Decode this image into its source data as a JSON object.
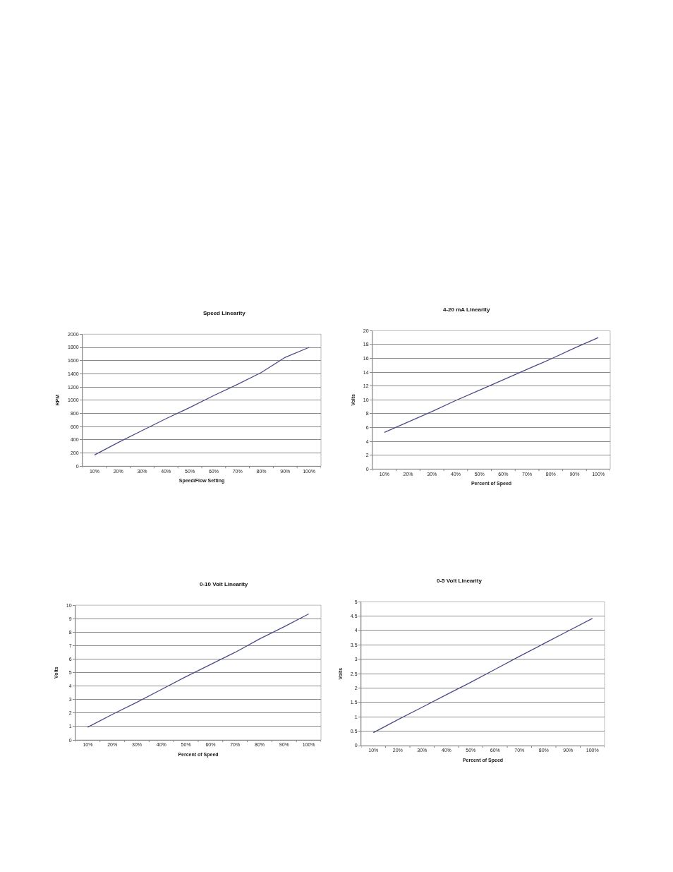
{
  "chart_data": [
    {
      "type": "line",
      "title": "Speed Linearity",
      "xlabel": "Speed/Flow Setting",
      "ylabel": "RPM",
      "categories": [
        "10%",
        "20%",
        "30%",
        "40%",
        "50%",
        "60%",
        "70%",
        "80%",
        "90%",
        "100%"
      ],
      "values": [
        170,
        360,
        540,
        720,
        890,
        1070,
        1240,
        1420,
        1650,
        1800
      ],
      "color": "#4b4b8c",
      "ylim": [
        0,
        2000
      ],
      "yticks": [
        0,
        200,
        400,
        600,
        800,
        1000,
        1200,
        1400,
        1600,
        1800,
        2000
      ],
      "grid": "y"
    },
    {
      "type": "line",
      "title": "4-20 mA Linearity",
      "xlabel": "Percent of Speed",
      "ylabel": "Volts",
      "categories": [
        "10%",
        "20%",
        "30%",
        "40%",
        "50%",
        "60%",
        "70%",
        "80%",
        "90%",
        "100%"
      ],
      "values": [
        5.3,
        6.8,
        8.3,
        9.9,
        11.4,
        12.9,
        14.4,
        15.9,
        17.5,
        19.0
      ],
      "color": "#4b4b8c",
      "ylim": [
        0,
        20
      ],
      "yticks": [
        0,
        2,
        4,
        6,
        8,
        10,
        12,
        14,
        16,
        18,
        20
      ],
      "grid": "y"
    },
    {
      "type": "line",
      "title": "0-10 Volt Linearity",
      "xlabel": "Percent of Speed",
      "ylabel": "Volts",
      "categories": [
        "10%",
        "20%",
        "30%",
        "40%",
        "50%",
        "60%",
        "70%",
        "80%",
        "90%",
        "100%"
      ],
      "values": [
        0.95,
        1.9,
        2.8,
        3.75,
        4.7,
        5.6,
        6.5,
        7.5,
        8.4,
        9.35
      ],
      "color": "#4b4b8c",
      "ylim": [
        0,
        10
      ],
      "yticks": [
        0,
        1,
        2,
        3,
        4,
        5,
        6,
        7,
        8,
        9,
        10
      ],
      "grid": "y"
    },
    {
      "type": "line",
      "title": "0-5 Volt Linearity",
      "xlabel": "Percent of Speed",
      "ylabel": "Volts",
      "categories": [
        "10%",
        "20%",
        "30%",
        "40%",
        "50%",
        "60%",
        "70%",
        "80%",
        "90%",
        "100%"
      ],
      "values": [
        0.45,
        0.9,
        1.33,
        1.77,
        2.2,
        2.65,
        3.1,
        3.54,
        3.98,
        4.42
      ],
      "color": "#4b4b8c",
      "ylim": [
        0,
        5
      ],
      "yticks": [
        0,
        0.5,
        1,
        1.5,
        2,
        2.5,
        3,
        3.5,
        4,
        4.5,
        5
      ],
      "grid": "y"
    }
  ]
}
